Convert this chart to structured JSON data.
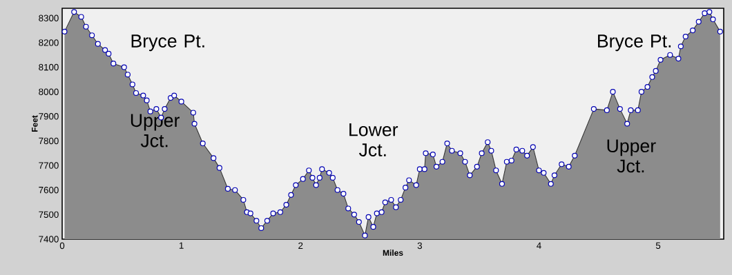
{
  "chart_data": {
    "type": "area",
    "xlabel": "Miles",
    "ylabel": "Feet",
    "x": [
      0.02,
      0.1,
      0.16,
      0.2,
      0.25,
      0.3,
      0.36,
      0.39,
      0.43,
      0.52,
      0.55,
      0.59,
      0.62,
      0.68,
      0.71,
      0.74,
      0.79,
      0.83,
      0.86,
      0.91,
      0.94,
      1.0,
      1.1,
      1.11,
      1.18,
      1.27,
      1.32,
      1.39,
      1.45,
      1.52,
      1.55,
      1.58,
      1.63,
      1.67,
      1.72,
      1.77,
      1.83,
      1.88,
      1.92,
      1.96,
      2.02,
      2.07,
      2.1,
      2.13,
      2.16,
      2.18,
      2.24,
      2.27,
      2.31,
      2.36,
      2.4,
      2.45,
      2.49,
      2.54,
      2.57,
      2.61,
      2.64,
      2.68,
      2.71,
      2.76,
      2.8,
      2.84,
      2.88,
      2.91,
      2.97,
      3.0,
      3.04,
      3.05,
      3.11,
      3.14,
      3.19,
      3.23,
      3.27,
      3.34,
      3.38,
      3.42,
      3.48,
      3.52,
      3.57,
      3.6,
      3.64,
      3.69,
      3.73,
      3.77,
      3.81,
      3.86,
      3.9,
      3.95,
      4.0,
      4.04,
      4.1,
      4.13,
      4.19,
      4.25,
      4.3,
      4.46,
      4.57,
      4.62,
      4.68,
      4.74,
      4.77,
      4.83,
      4.86,
      4.91,
      4.95,
      4.98,
      5.02,
      5.1,
      5.17,
      5.19,
      5.23,
      5.29,
      5.34,
      5.39,
      5.43,
      5.46,
      5.52
    ],
    "series": [
      {
        "color": "#8c8c8c",
        "values": [
          8245,
          8325,
          8305,
          8265,
          8230,
          8195,
          8170,
          8155,
          8115,
          8100,
          8070,
          8030,
          7995,
          7985,
          7965,
          7920,
          7930,
          7895,
          7930,
          7975,
          7985,
          7960,
          7915,
          7870,
          7790,
          7730,
          7690,
          7605,
          7600,
          7560,
          7510,
          7505,
          7475,
          7445,
          7475,
          7505,
          7510,
          7540,
          7580,
          7620,
          7645,
          7680,
          7650,
          7620,
          7650,
          7685,
          7670,
          7650,
          7600,
          7585,
          7525,
          7500,
          7470,
          7415,
          7490,
          7450,
          7505,
          7510,
          7550,
          7560,
          7530,
          7560,
          7610,
          7640,
          7620,
          7685,
          7685,
          7750,
          7745,
          7695,
          7715,
          7790,
          7760,
          7750,
          7715,
          7660,
          7695,
          7750,
          7795,
          7760,
          7680,
          7625,
          7715,
          7720,
          7765,
          7760,
          7740,
          7775,
          7680,
          7670,
          7625,
          7660,
          7705,
          7695,
          7740,
          7930,
          7925,
          8000,
          7930,
          7870,
          7925,
          7925,
          8000,
          8020,
          8060,
          8085,
          8130,
          8150,
          8135,
          8185,
          8225,
          8250,
          8285,
          8320,
          8325,
          8295,
          8245
        ]
      }
    ],
    "xlim": [
      0,
      5.55
    ],
    "ylim": [
      7400,
      8340
    ],
    "xticks": [
      0,
      1,
      2,
      3,
      4,
      5
    ],
    "yticks": [
      7400,
      7500,
      7600,
      7700,
      7800,
      7900,
      8000,
      8100,
      8200,
      8300
    ],
    "marker": "circle",
    "annotations": [
      "Bryce Pt.",
      "Upper Jct.",
      "Lower Jct.",
      "Upper Jct.",
      "Bryce Pt."
    ]
  }
}
